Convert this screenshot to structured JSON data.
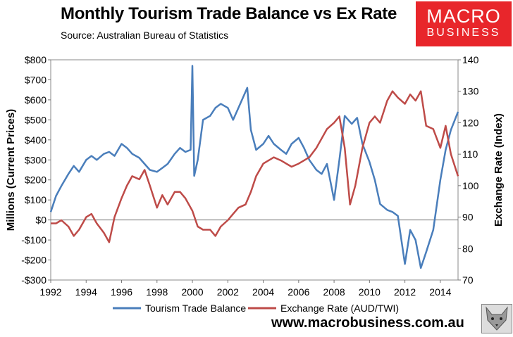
{
  "header": {
    "title": "Monthly Tourism Trade Balance vs Ex Rate",
    "source": "Source: Australian Bureau of Statistics"
  },
  "logo": {
    "line1": "MACRO",
    "line2": "BUSINESS"
  },
  "footer": {
    "url": "www.macrobusiness.com.au"
  },
  "colors": {
    "trade": "#4a7ebb",
    "fx": "#be4b48"
  },
  "chart_data": {
    "type": "line",
    "title": "Monthly Tourism Trade Balance vs Ex Rate",
    "ylabel": "Millions (Current Prices)",
    "y2label": "Exchange Rate (Index)",
    "xlim": [
      1992,
      2015
    ],
    "ylim": [
      -300,
      800
    ],
    "y2lim": [
      70,
      140
    ],
    "x_ticks": [
      1992,
      1994,
      1996,
      1998,
      2000,
      2002,
      2004,
      2006,
      2008,
      2010,
      2012,
      2014
    ],
    "x_tick_labels": [
      "1992",
      "1994",
      "1996",
      "1998",
      "2000",
      "2002",
      "2004",
      "2006",
      "2008",
      "2010",
      "2012",
      "2014"
    ],
    "y_ticks": [
      -300,
      -200,
      -100,
      0,
      100,
      200,
      300,
      400,
      500,
      600,
      700,
      800
    ],
    "y_tick_labels": [
      "-$300",
      "-$200",
      "-$100",
      "$0",
      "$100",
      "$200",
      "$300",
      "$400",
      "$500",
      "$600",
      "$700",
      "$800"
    ],
    "y2_ticks": [
      70,
      80,
      90,
      100,
      110,
      120,
      130,
      140
    ],
    "y2_tick_labels": [
      "70",
      "80",
      "90",
      "100",
      "110",
      "120",
      "130",
      "140"
    ],
    "legend": "bottom",
    "series": [
      {
        "name": "Tourism Trade Balance",
        "axis": "left",
        "x": [
          1992.0,
          1992.3,
          1992.6,
          1993.0,
          1993.3,
          1993.6,
          1994.0,
          1994.3,
          1994.6,
          1995.0,
          1995.3,
          1995.6,
          1996.0,
          1996.3,
          1996.6,
          1997.0,
          1997.3,
          1997.6,
          1998.0,
          1998.3,
          1998.6,
          1999.0,
          1999.3,
          1999.6,
          1999.9,
          2000.0,
          2000.1,
          2000.3,
          2000.6,
          2001.0,
          2001.3,
          2001.6,
          2002.0,
          2002.3,
          2002.6,
          2003.0,
          2003.1,
          2003.3,
          2003.6,
          2004.0,
          2004.3,
          2004.6,
          2005.0,
          2005.3,
          2005.6,
          2006.0,
          2006.3,
          2006.6,
          2007.0,
          2007.3,
          2007.6,
          2008.0,
          2008.3,
          2008.6,
          2009.0,
          2009.3,
          2009.6,
          2010.0,
          2010.3,
          2010.6,
          2011.0,
          2011.3,
          2011.6,
          2012.0,
          2012.3,
          2012.6,
          2012.9,
          2013.2,
          2013.6,
          2014.0,
          2014.3,
          2014.6,
          2015.0
        ],
        "values": [
          40,
          120,
          170,
          230,
          270,
          240,
          300,
          320,
          300,
          330,
          340,
          320,
          380,
          360,
          330,
          310,
          280,
          250,
          240,
          260,
          280,
          330,
          360,
          340,
          350,
          770,
          220,
          300,
          500,
          520,
          560,
          580,
          560,
          500,
          560,
          640,
          660,
          450,
          350,
          380,
          420,
          380,
          350,
          330,
          380,
          410,
          360,
          300,
          250,
          230,
          280,
          100,
          300,
          520,
          480,
          510,
          380,
          290,
          200,
          80,
          50,
          40,
          20,
          -220,
          -50,
          -100,
          -240,
          -160,
          -50,
          200,
          350,
          450,
          540
        ]
      },
      {
        "name": "Exchange Rate (AUD/TWI)",
        "axis": "right",
        "x": [
          1992.0,
          1992.3,
          1992.6,
          1993.0,
          1993.3,
          1993.6,
          1994.0,
          1994.3,
          1994.6,
          1995.0,
          1995.3,
          1995.6,
          1996.0,
          1996.3,
          1996.6,
          1997.0,
          1997.3,
          1997.6,
          1998.0,
          1998.3,
          1998.6,
          1999.0,
          1999.3,
          1999.6,
          2000.0,
          2000.3,
          2000.6,
          2001.0,
          2001.3,
          2001.6,
          2002.0,
          2002.3,
          2002.6,
          2003.0,
          2003.3,
          2003.6,
          2004.0,
          2004.3,
          2004.6,
          2005.0,
          2005.3,
          2005.6,
          2006.0,
          2006.3,
          2006.6,
          2007.0,
          2007.3,
          2007.6,
          2008.0,
          2008.3,
          2008.6,
          2008.9,
          2009.2,
          2009.6,
          2010.0,
          2010.3,
          2010.6,
          2011.0,
          2011.3,
          2011.6,
          2012.0,
          2012.3,
          2012.6,
          2012.9,
          2013.2,
          2013.6,
          2014.0,
          2014.3,
          2014.6,
          2015.0
        ],
        "values": [
          88,
          88,
          89,
          87,
          84,
          86,
          90,
          91,
          88,
          85,
          82,
          90,
          96,
          100,
          103,
          102,
          105,
          100,
          93,
          97,
          94,
          98,
          98,
          96,
          92,
          87,
          86,
          86,
          84,
          87,
          89,
          91,
          93,
          94,
          98,
          103,
          107,
          108,
          109,
          108,
          107,
          106,
          107,
          108,
          109,
          112,
          115,
          118,
          120,
          122,
          112,
          94,
          100,
          112,
          120,
          122,
          120,
          127,
          130,
          128,
          126,
          129,
          127,
          130,
          119,
          118,
          112,
          119,
          110,
          103
        ]
      }
    ]
  }
}
